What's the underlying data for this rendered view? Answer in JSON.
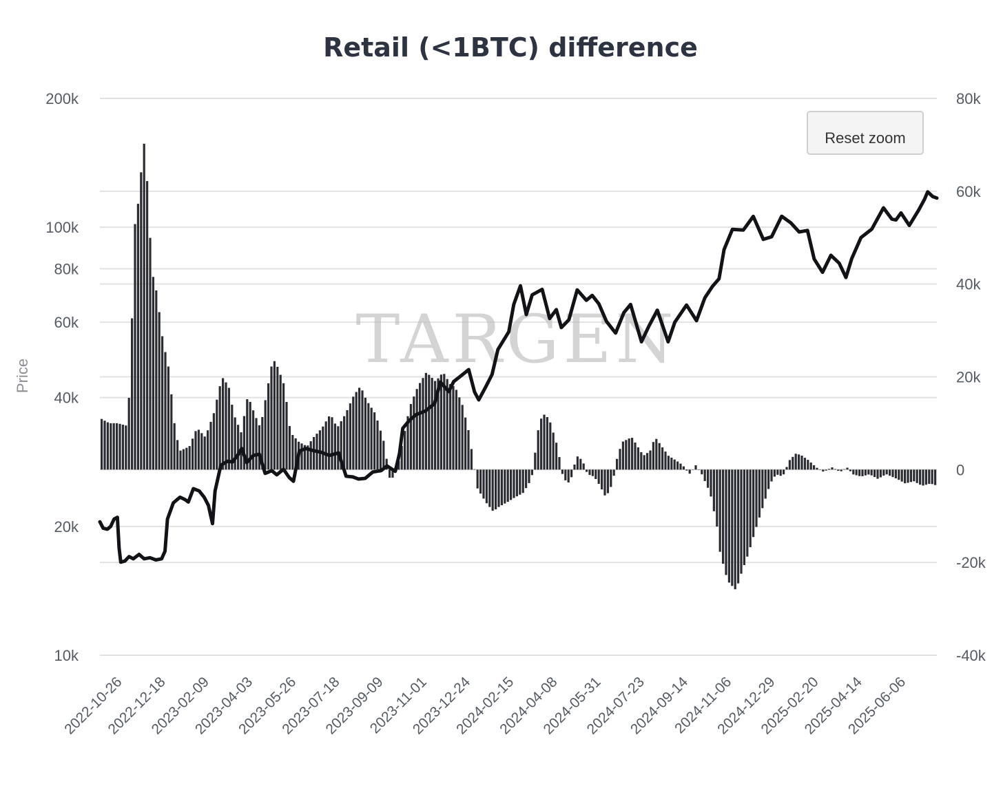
{
  "title": "Retail (<1BTC) difference",
  "watermark": "TARGEN",
  "reset_zoom_label": "Reset zoom",
  "left_axis_title": "Price",
  "left_axis_ticks": [
    {
      "label": "200k",
      "value": 200000
    },
    {
      "label": "100k",
      "value": 100000
    },
    {
      "label": "80k",
      "value": 80000
    },
    {
      "label": "60k",
      "value": 60000
    },
    {
      "label": "40k",
      "value": 40000
    },
    {
      "label": "20k",
      "value": 20000
    },
    {
      "label": "10k",
      "value": 10000
    }
  ],
  "right_axis_ticks": [
    {
      "label": "80k",
      "value": 80000
    },
    {
      "label": "60k",
      "value": 60000
    },
    {
      "label": "40k",
      "value": 40000
    },
    {
      "label": "20k",
      "value": 20000
    },
    {
      "label": "0",
      "value": 0
    },
    {
      "label": "-20k",
      "value": -20000
    },
    {
      "label": "-40k",
      "value": -40000
    }
  ],
  "x_tick_labels": [
    "2022-10-26",
    "2022-12-18",
    "2023-02-09",
    "2023-04-03",
    "2023-05-26",
    "2023-07-18",
    "2023-09-09",
    "2023-11-01",
    "2023-12-24",
    "2024-02-15",
    "2024-04-08",
    "2024-05-31",
    "2024-07-23",
    "2024-09-14",
    "2024-11-06",
    "2024-12-29",
    "2025-02-20",
    "2025-04-14",
    "2025-06-06"
  ],
  "colors": {
    "bars": "#2a2c31",
    "line": "#111316",
    "grid": "#e2e2e2",
    "title": "#2d3340"
  },
  "chart_data": {
    "type": "bar",
    "title": "Retail (<1BTC) difference",
    "left_axis": {
      "label": "Price",
      "scale": "log",
      "range": [
        10000,
        200000
      ]
    },
    "right_axis": {
      "label": "",
      "scale": "linear",
      "range": [
        -40000,
        80000
      ]
    },
    "x_range": [
      "2022-10-26",
      "2025-07-25"
    ],
    "grid": true,
    "series": [
      {
        "kind": "bar",
        "axis": "right",
        "points": [
          [
            "2022-10-26",
            11000
          ],
          [
            "2022-11-05",
            10000
          ],
          [
            "2022-11-15",
            10000
          ],
          [
            "2022-11-25",
            9500
          ],
          [
            "2022-11-30",
            18000
          ],
          [
            "2022-12-05",
            52000
          ],
          [
            "2022-12-10",
            58000
          ],
          [
            "2022-12-15",
            68000
          ],
          [
            "2022-12-18",
            72000
          ],
          [
            "2022-12-22",
            55000
          ],
          [
            "2022-12-27",
            42000
          ],
          [
            "2023-01-01",
            38000
          ],
          [
            "2023-01-08",
            28000
          ],
          [
            "2023-01-15",
            22000
          ],
          [
            "2023-01-22",
            10000
          ],
          [
            "2023-01-28",
            4000
          ],
          [
            "2023-02-09",
            5000
          ],
          [
            "2023-02-18",
            9000
          ],
          [
            "2023-02-28",
            7000
          ],
          [
            "2023-03-10",
            12000
          ],
          [
            "2023-03-20",
            20000
          ],
          [
            "2023-03-28",
            18000
          ],
          [
            "2023-04-03",
            12000
          ],
          [
            "2023-04-12",
            8000
          ],
          [
            "2023-04-20",
            16000
          ],
          [
            "2023-04-28",
            12000
          ],
          [
            "2023-05-05",
            9000
          ],
          [
            "2023-05-12",
            16000
          ],
          [
            "2023-05-20",
            24000
          ],
          [
            "2023-05-26",
            22000
          ],
          [
            "2023-06-03",
            18000
          ],
          [
            "2023-06-10",
            8000
          ],
          [
            "2023-06-20",
            6000
          ],
          [
            "2023-06-30",
            5000
          ],
          [
            "2023-07-08",
            7000
          ],
          [
            "2023-07-18",
            9000
          ],
          [
            "2023-07-28",
            12000
          ],
          [
            "2023-08-05",
            9000
          ],
          [
            "2023-08-15",
            12000
          ],
          [
            "2023-08-25",
            16000
          ],
          [
            "2023-09-02",
            18000
          ],
          [
            "2023-09-09",
            15000
          ],
          [
            "2023-09-20",
            12000
          ],
          [
            "2023-09-30",
            6000
          ],
          [
            "2023-10-08",
            -3000
          ],
          [
            "2023-10-18",
            2000
          ],
          [
            "2023-10-28",
            11000
          ],
          [
            "2023-11-01",
            14000
          ],
          [
            "2023-11-10",
            18000
          ],
          [
            "2023-11-20",
            21000
          ],
          [
            "2023-12-01",
            19000
          ],
          [
            "2023-12-10",
            21000
          ],
          [
            "2023-12-20",
            18000
          ],
          [
            "2023-12-24",
            18000
          ],
          [
            "2024-01-02",
            14000
          ],
          [
            "2024-01-10",
            8000
          ],
          [
            "2024-01-20",
            -4000
          ],
          [
            "2024-01-30",
            -7000
          ],
          [
            "2024-02-08",
            -9000
          ],
          [
            "2024-02-15",
            -8000
          ],
          [
            "2024-02-25",
            -7000
          ],
          [
            "2024-03-05",
            -6000
          ],
          [
            "2024-03-15",
            -5000
          ],
          [
            "2024-03-25",
            -2000
          ],
          [
            "2024-03-28",
            2000
          ],
          [
            "2024-04-03",
            10000
          ],
          [
            "2024-04-08",
            12000
          ],
          [
            "2024-04-15",
            11000
          ],
          [
            "2024-04-25",
            5000
          ],
          [
            "2024-05-02",
            -2000
          ],
          [
            "2024-05-10",
            -3000
          ],
          [
            "2024-05-18",
            3000
          ],
          [
            "2024-05-25",
            2000
          ],
          [
            "2024-05-31",
            -1000
          ],
          [
            "2024-06-08",
            -1500
          ],
          [
            "2024-06-15",
            -3500
          ],
          [
            "2024-06-22",
            -6000
          ],
          [
            "2024-06-30",
            -3000
          ],
          [
            "2024-07-06",
            3000
          ],
          [
            "2024-07-12",
            6000
          ],
          [
            "2024-07-23",
            7000
          ],
          [
            "2024-07-30",
            5000
          ],
          [
            "2024-08-06",
            3000
          ],
          [
            "2024-08-14",
            4000
          ],
          [
            "2024-08-20",
            7000
          ],
          [
            "2024-08-28",
            5000
          ],
          [
            "2024-09-05",
            3000
          ],
          [
            "2024-09-14",
            2000
          ],
          [
            "2024-09-22",
            1000
          ],
          [
            "2024-09-30",
            -1000
          ],
          [
            "2024-10-08",
            1000
          ],
          [
            "2024-10-15",
            -1000
          ],
          [
            "2024-10-25",
            -5000
          ],
          [
            "2024-11-02",
            -12000
          ],
          [
            "2024-11-06",
            -18000
          ],
          [
            "2024-11-15",
            -24000
          ],
          [
            "2024-11-25",
            -26000
          ],
          [
            "2024-12-02",
            -22000
          ],
          [
            "2024-12-10",
            -18000
          ],
          [
            "2024-12-20",
            -12000
          ],
          [
            "2024-12-29",
            -7000
          ],
          [
            "2025-01-05",
            -3000
          ],
          [
            "2025-01-12",
            -1000
          ],
          [
            "2025-01-20",
            -1500
          ],
          [
            "2025-01-28",
            2000
          ],
          [
            "2025-02-05",
            3500
          ],
          [
            "2025-02-12",
            3000
          ],
          [
            "2025-02-20",
            2000
          ],
          [
            "2025-03-01",
            500
          ],
          [
            "2025-03-10",
            -500
          ],
          [
            "2025-03-20",
            500
          ],
          [
            "2025-03-30",
            -500
          ],
          [
            "2025-04-07",
            500
          ],
          [
            "2025-04-14",
            -1000
          ],
          [
            "2025-04-24",
            -1500
          ],
          [
            "2025-05-04",
            -1000
          ],
          [
            "2025-05-14",
            -2000
          ],
          [
            "2025-05-24",
            -1000
          ],
          [
            "2025-06-06",
            -2000
          ],
          [
            "2025-06-16",
            -3000
          ],
          [
            "2025-06-26",
            -2500
          ],
          [
            "2025-07-06",
            -3500
          ],
          [
            "2025-07-16",
            -3000
          ],
          [
            "2025-07-25",
            -3500
          ]
        ]
      },
      {
        "kind": "line",
        "axis": "left",
        "name": "Price",
        "points": [
          [
            "2022-10-26",
            20500
          ],
          [
            "2022-10-30",
            19800
          ],
          [
            "2022-11-04",
            19700
          ],
          [
            "2022-11-08",
            20000
          ],
          [
            "2022-11-12",
            20800
          ],
          [
            "2022-11-16",
            21000
          ],
          [
            "2022-11-18",
            17800
          ],
          [
            "2022-11-20",
            16500
          ],
          [
            "2022-11-25",
            16600
          ],
          [
            "2022-11-30",
            17000
          ],
          [
            "2022-12-05",
            16800
          ],
          [
            "2022-12-12",
            17200
          ],
          [
            "2022-12-18",
            16800
          ],
          [
            "2022-12-25",
            16900
          ],
          [
            "2023-01-01",
            16700
          ],
          [
            "2023-01-08",
            16800
          ],
          [
            "2023-01-12",
            17500
          ],
          [
            "2023-01-15",
            20800
          ],
          [
            "2023-01-22",
            22700
          ],
          [
            "2023-01-30",
            23400
          ],
          [
            "2023-02-05",
            23100
          ],
          [
            "2023-02-09",
            22800
          ],
          [
            "2023-02-15",
            24500
          ],
          [
            "2023-02-22",
            24200
          ],
          [
            "2023-02-28",
            23400
          ],
          [
            "2023-03-05",
            22400
          ],
          [
            "2023-03-10",
            20300
          ],
          [
            "2023-03-13",
            24200
          ],
          [
            "2023-03-20",
            27800
          ],
          [
            "2023-03-28",
            28400
          ],
          [
            "2023-04-03",
            28300
          ],
          [
            "2023-04-10",
            29500
          ],
          [
            "2023-04-14",
            30400
          ],
          [
            "2023-04-20",
            28200
          ],
          [
            "2023-04-28",
            29300
          ],
          [
            "2023-05-05",
            29500
          ],
          [
            "2023-05-12",
            26600
          ],
          [
            "2023-05-20",
            27000
          ],
          [
            "2023-05-26",
            26400
          ],
          [
            "2023-06-03",
            27200
          ],
          [
            "2023-06-10",
            26000
          ],
          [
            "2023-06-15",
            25500
          ],
          [
            "2023-06-22",
            30000
          ],
          [
            "2023-06-30",
            30400
          ],
          [
            "2023-07-08",
            30100
          ],
          [
            "2023-07-18",
            29800
          ],
          [
            "2023-07-28",
            29300
          ],
          [
            "2023-08-08",
            29700
          ],
          [
            "2023-08-17",
            26200
          ],
          [
            "2023-08-25",
            26100
          ],
          [
            "2023-09-01",
            25800
          ],
          [
            "2023-09-09",
            25900
          ],
          [
            "2023-09-18",
            26800
          ],
          [
            "2023-09-28",
            27000
          ],
          [
            "2023-10-05",
            27700
          ],
          [
            "2023-10-15",
            26900
          ],
          [
            "2023-10-20",
            29600
          ],
          [
            "2023-10-24",
            33900
          ],
          [
            "2023-11-01",
            35400
          ],
          [
            "2023-11-09",
            36500
          ],
          [
            "2023-11-20",
            37200
          ],
          [
            "2023-12-01",
            38700
          ],
          [
            "2023-12-08",
            43500
          ],
          [
            "2023-12-18",
            41300
          ],
          [
            "2023-12-24",
            43600
          ],
          [
            "2024-01-02",
            45000
          ],
          [
            "2024-01-11",
            46500
          ],
          [
            "2024-01-18",
            41200
          ],
          [
            "2024-01-23",
            39500
          ],
          [
            "2024-02-01",
            42600
          ],
          [
            "2024-02-08",
            45300
          ],
          [
            "2024-02-15",
            51800
          ],
          [
            "2024-02-28",
            57000
          ],
          [
            "2024-03-05",
            66000
          ],
          [
            "2024-03-13",
            73000
          ],
          [
            "2024-03-20",
            62500
          ],
          [
            "2024-03-27",
            69500
          ],
          [
            "2024-04-08",
            71600
          ],
          [
            "2024-04-17",
            61200
          ],
          [
            "2024-04-25",
            64200
          ],
          [
            "2024-05-01",
            58300
          ],
          [
            "2024-05-10",
            60800
          ],
          [
            "2024-05-20",
            71400
          ],
          [
            "2024-05-31",
            67500
          ],
          [
            "2024-06-07",
            69300
          ],
          [
            "2024-06-15",
            66200
          ],
          [
            "2024-06-24",
            60300
          ],
          [
            "2024-07-05",
            56600
          ],
          [
            "2024-07-15",
            63200
          ],
          [
            "2024-07-23",
            66000
          ],
          [
            "2024-08-05",
            54000
          ],
          [
            "2024-08-14",
            58800
          ],
          [
            "2024-08-24",
            64000
          ],
          [
            "2024-09-06",
            54000
          ],
          [
            "2024-09-14",
            60000
          ],
          [
            "2024-09-28",
            65800
          ],
          [
            "2024-10-10",
            60500
          ],
          [
            "2024-10-20",
            68400
          ],
          [
            "2024-10-29",
            72700
          ],
          [
            "2024-11-06",
            75800
          ],
          [
            "2024-11-12",
            88700
          ],
          [
            "2024-11-22",
            98900
          ],
          [
            "2024-12-05",
            98500
          ],
          [
            "2024-12-17",
            106000
          ],
          [
            "2024-12-29",
            93700
          ],
          [
            "2025-01-08",
            95000
          ],
          [
            "2025-01-20",
            106100
          ],
          [
            "2025-01-31",
            102400
          ],
          [
            "2025-02-10",
            97500
          ],
          [
            "2025-02-20",
            98300
          ],
          [
            "2025-02-28",
            84300
          ],
          [
            "2025-03-10",
            78500
          ],
          [
            "2025-03-20",
            86000
          ],
          [
            "2025-03-30",
            82400
          ],
          [
            "2025-04-07",
            76300
          ],
          [
            "2025-04-14",
            84500
          ],
          [
            "2025-04-25",
            94600
          ],
          [
            "2025-05-08",
            99000
          ],
          [
            "2025-05-22",
            111000
          ],
          [
            "2025-06-01",
            104500
          ],
          [
            "2025-06-06",
            104000
          ],
          [
            "2025-06-12",
            108000
          ],
          [
            "2025-06-22",
            101000
          ],
          [
            "2025-07-03",
            109500
          ],
          [
            "2025-07-10",
            116000
          ],
          [
            "2025-07-14",
            121000
          ],
          [
            "2025-07-20",
            118000
          ],
          [
            "2025-07-25",
            117000
          ]
        ]
      }
    ]
  }
}
